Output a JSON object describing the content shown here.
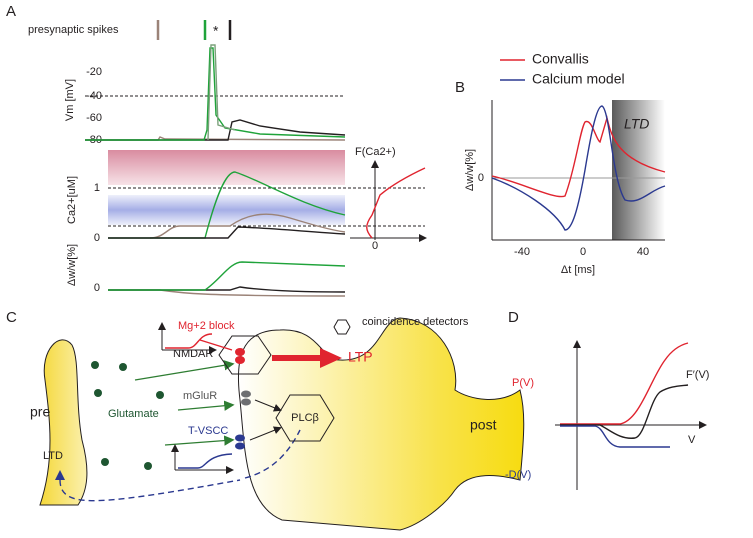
{
  "panel_a": {
    "label": "A",
    "spikes_label": "presynaptic spikes",
    "star": "*",
    "vm_axis": "Vm [mV]",
    "vm_ticks": [
      "-20",
      "-40",
      "-60",
      "-80"
    ],
    "ca_axis": "Ca2+[uM]",
    "ca_ticks": [
      "1",
      "0"
    ],
    "f_label": "F(Ca2+)",
    "f_zero": "0",
    "dw_axis": "Δw/w[%]",
    "dw_zero": "0"
  },
  "panel_b": {
    "label": "B",
    "legend": [
      "Convallis",
      "Calcium model"
    ],
    "region": "LTD",
    "y_axis": "Δw/w[%]",
    "y_zero": "0",
    "x_ticks": [
      "-40",
      "0",
      "40"
    ],
    "x_axis": "Δt [ms]"
  },
  "panel_c": {
    "label": "C",
    "mg_block": "Mg+2 block",
    "coincidence": "coincidence detectors",
    "nmdar": "NMDAR",
    "ltp": "LTP",
    "pre": "pre",
    "glutamate": "Glutamate",
    "mglur": "mGluR",
    "plc": "PLCβ",
    "post": "post",
    "ltd": "LTD",
    "tvscc": "T-VSCC"
  },
  "panel_d": {
    "label": "D",
    "p": "P(V)",
    "f": "F′(V)",
    "v": "V",
    "d": "-D(V)"
  }
}
